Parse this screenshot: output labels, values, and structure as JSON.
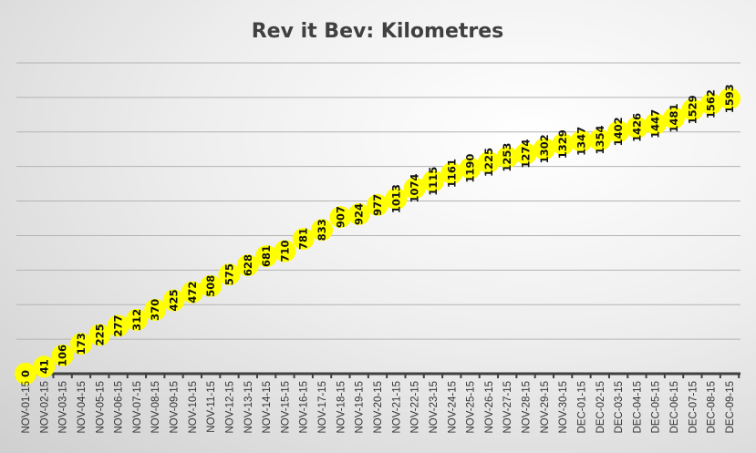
{
  "chart_data": {
    "type": "line",
    "title": "Rev it Bev: Kilometres",
    "xlabel": "",
    "ylabel": "",
    "ylim": [
      0,
      1800
    ],
    "grid_step": 200,
    "grid": true,
    "legend": "none",
    "marker_color": "#ffff00",
    "categories": [
      "NOV-01-15",
      "NOV-02-15",
      "NOV-03-15",
      "NOV-04-15",
      "NOV-05-15",
      "NOV-06-15",
      "NOV-07-15",
      "NOV-08-15",
      "NOV-09-15",
      "NOV-10-15",
      "NOV-11-15",
      "NOV-12-15",
      "NOV-13-15",
      "NOV-14-15",
      "NOV-15-15",
      "NOV-16-15",
      "NOV-17-15",
      "NOV-18-15",
      "NOV-19-15",
      "NOV-20-15",
      "NOV-21-15",
      "NOV-22-15",
      "NOV-23-15",
      "NOV-24-15",
      "NOV-25-15",
      "NOV-26-15",
      "NOV-27-15",
      "NOV-28-15",
      "NOV-29-15",
      "NOV-30-15",
      "DEC-01-15",
      "DEC-02-15",
      "DEC-03-15",
      "DEC-04-15",
      "DEC-05-15",
      "DEC-06-15",
      "DEC-07-15",
      "DEC-08-15",
      "DEC-09-15"
    ],
    "values": [
      0,
      41,
      106,
      173,
      225,
      277,
      312,
      370,
      425,
      472,
      508,
      575,
      628,
      681,
      710,
      781,
      833,
      907,
      924,
      977,
      1013,
      1074,
      1115,
      1161,
      1190,
      1225,
      1253,
      1274,
      1302,
      1329,
      1347,
      1354,
      1402,
      1426,
      1447,
      1481,
      1529,
      1562,
      1593
    ]
  }
}
